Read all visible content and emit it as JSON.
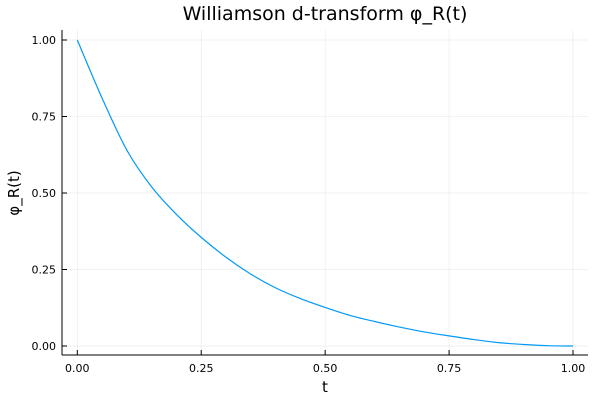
{
  "chart_data": {
    "type": "line",
    "title": "Williamson d-transform φ_R(t)",
    "xlabel": "t",
    "ylabel": "φ_R(t)",
    "xlim": [
      0,
      1
    ],
    "ylim": [
      0,
      1
    ],
    "xticks": [
      0,
      0.25,
      0.5,
      0.75,
      1
    ],
    "xtick_labels": [
      "0.00",
      "0.25",
      "0.50",
      "0.75",
      "1.00"
    ],
    "yticks": [
      0,
      0.25,
      0.5,
      0.75,
      1
    ],
    "ytick_labels": [
      "0.00",
      "0.25",
      "0.50",
      "0.75",
      "1.00"
    ],
    "grid": true,
    "legend": "none",
    "series_color": "#009af9",
    "x": [
      0,
      0.05,
      0.1,
      0.15,
      0.2,
      0.25,
      0.3,
      0.35,
      0.4,
      0.45,
      0.5,
      0.55,
      0.6,
      0.65,
      0.7,
      0.75,
      0.8,
      0.85,
      0.9,
      0.95,
      1.0
    ],
    "y": [
      1.0,
      0.81,
      0.64,
      0.52,
      0.43,
      0.355,
      0.29,
      0.235,
      0.19,
      0.155,
      0.126,
      0.1,
      0.08,
      0.062,
      0.046,
      0.033,
      0.021,
      0.011,
      0.005,
      0.001,
      0.0
    ]
  }
}
